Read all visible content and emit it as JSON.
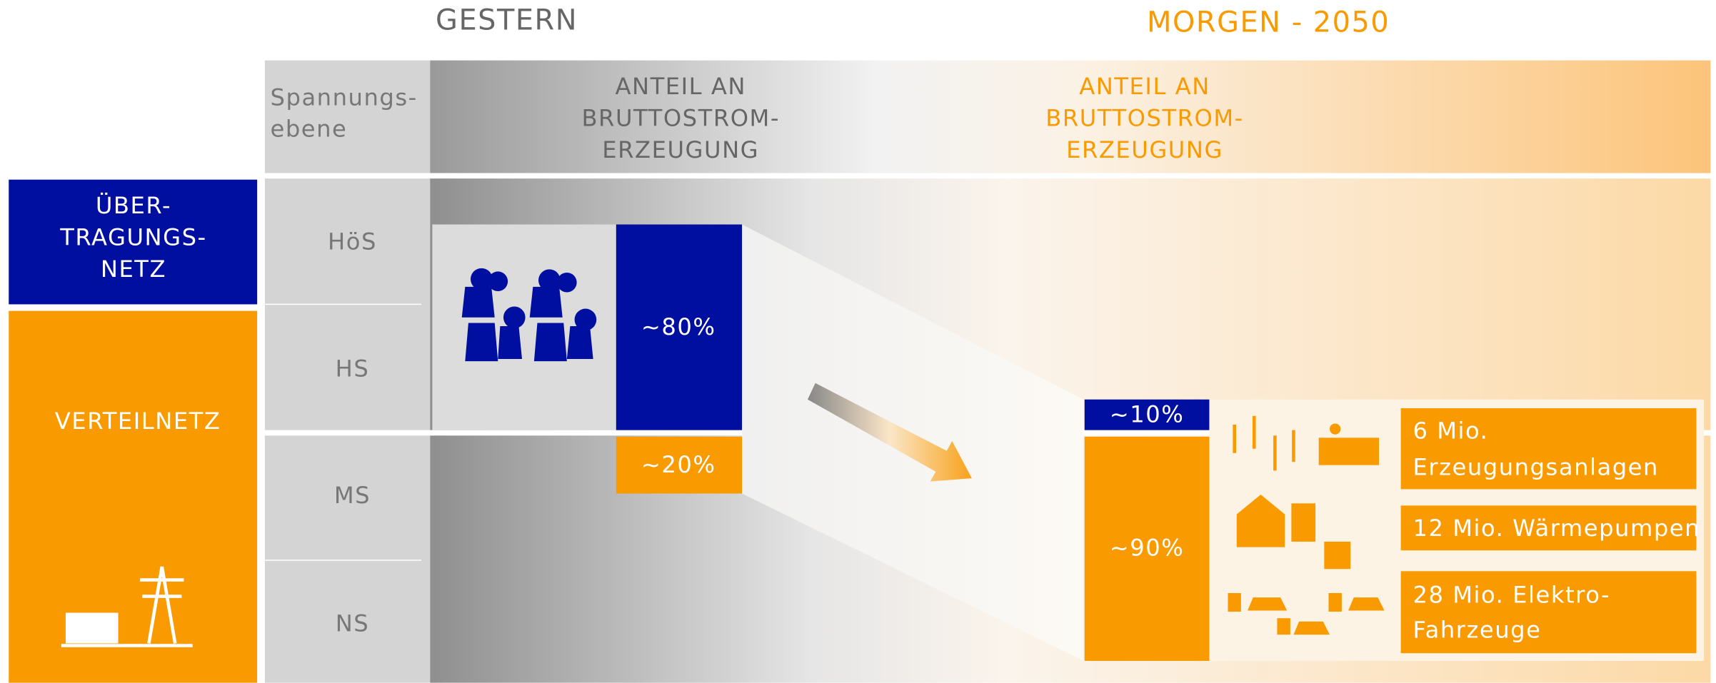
{
  "headers": {
    "yesterday": "GESTERN",
    "tomorrow": "MORGEN - 2050"
  },
  "level_header": [
    "Spannungs-",
    "ebene"
  ],
  "share_header_yesterday": [
    "ANTEIL AN",
    "BRUTTOSTROM-",
    "ERZEUGUNG"
  ],
  "share_header_tomorrow": [
    "ANTEIL AN",
    "BRUTTOSTROM-",
    "ERZEUGUNG"
  ],
  "networks": [
    {
      "label": [
        "ÜBER-",
        "TRAGUNGS-",
        "NETZ"
      ]
    },
    {
      "label": [
        "VERTEILNETZ"
      ]
    }
  ],
  "levels": [
    "HöS",
    "HS",
    "MS",
    "NS"
  ],
  "yesterday_shares": [
    "~80%",
    "~20%"
  ],
  "tomorrow_shares": [
    "~10%",
    "~90%"
  ],
  "facts": [
    [
      "6 Mio.",
      "Erzeugungsanlagen"
    ],
    [
      "12 Mio. Wärmepumpen"
    ],
    [
      "28 Mio. Elektro-",
      "Fahrzeuge"
    ]
  ]
}
